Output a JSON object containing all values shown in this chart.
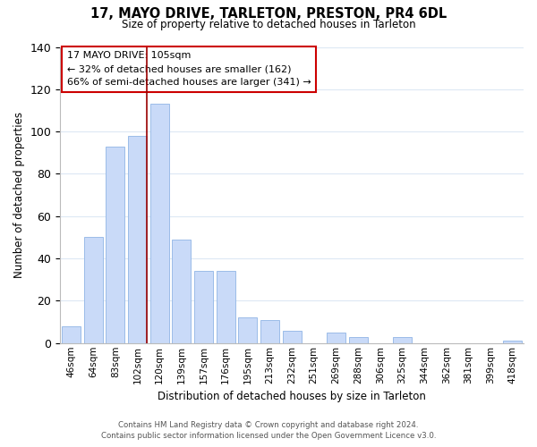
{
  "title": "17, MAYO DRIVE, TARLETON, PRESTON, PR4 6DL",
  "subtitle": "Size of property relative to detached houses in Tarleton",
  "xlabel": "Distribution of detached houses by size in Tarleton",
  "ylabel": "Number of detached properties",
  "bar_labels": [
    "46sqm",
    "64sqm",
    "83sqm",
    "102sqm",
    "120sqm",
    "139sqm",
    "157sqm",
    "176sqm",
    "195sqm",
    "213sqm",
    "232sqm",
    "251sqm",
    "269sqm",
    "288sqm",
    "306sqm",
    "325sqm",
    "344sqm",
    "362sqm",
    "381sqm",
    "399sqm",
    "418sqm"
  ],
  "bar_values": [
    8,
    50,
    93,
    98,
    113,
    49,
    34,
    34,
    12,
    11,
    6,
    0,
    5,
    3,
    0,
    3,
    0,
    0,
    0,
    0,
    1
  ],
  "bar_color": "#c9daf8",
  "bar_edge_color": "#9bbce8",
  "ylim": [
    0,
    140
  ],
  "yticks": [
    0,
    20,
    40,
    60,
    80,
    100,
    120,
    140
  ],
  "property_line_color": "#990000",
  "annotation_title": "17 MAYO DRIVE: 105sqm",
  "annotation_line1": "← 32% of detached houses are smaller (162)",
  "annotation_line2": "66% of semi-detached houses are larger (341) →",
  "annotation_box_edge_color": "#cc0000",
  "footer_line1": "Contains HM Land Registry data © Crown copyright and database right 2024.",
  "footer_line2": "Contains public sector information licensed under the Open Government Licence v3.0.",
  "background_color": "#ffffff",
  "grid_color": "#dde8f4"
}
